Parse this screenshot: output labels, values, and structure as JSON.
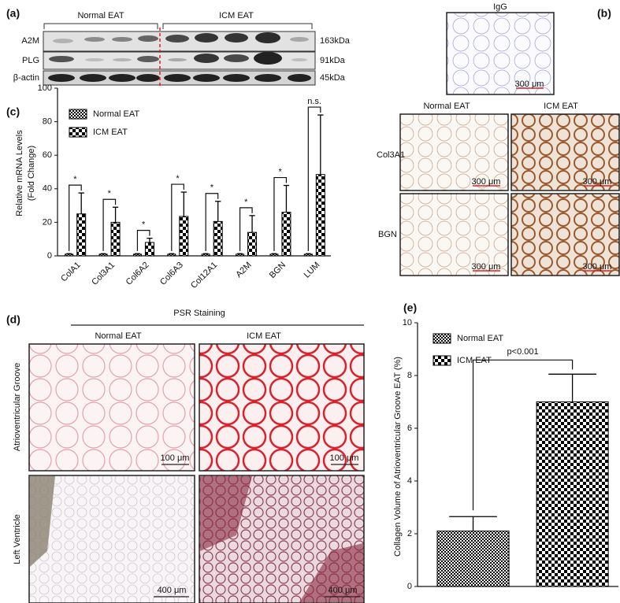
{
  "blot": {
    "label": "(a)",
    "groups": [
      "Normal EAT",
      "ICM EAT"
    ],
    "rows": [
      {
        "name": "A2M",
        "size": "163kDa"
      },
      {
        "name": "PLG",
        "size": "91kDa"
      },
      {
        "name": "β-actin",
        "size": "45kDa"
      }
    ]
  },
  "ihc": {
    "label": "(b)",
    "control": "IgG",
    "columns": [
      "Normal EAT",
      "ICM EAT"
    ],
    "rows": [
      "Col3A1",
      "BGN"
    ],
    "scale_bar": "300 μm"
  },
  "psr": {
    "label": "(d)",
    "title": "PSR Staining",
    "columns": [
      "Normal EAT",
      "ICM EAT"
    ],
    "rows": [
      "Atrioventricular Groove",
      "Left Ventricle"
    ],
    "scale_bars": [
      "100 μm",
      "400 μm"
    ]
  },
  "chart_data": [
    {
      "type": "bar",
      "label": "(c)",
      "ylabel": [
        "Relative mRNA Levels",
        "(Fold Change)"
      ],
      "categories": [
        "ColA1",
        "Col3A1",
        "Col6A2",
        "Col6A3",
        "Col12A1",
        "A2M",
        "BGN",
        "LUM"
      ],
      "series": [
        {
          "name": "Normal EAT",
          "color": "#000000",
          "pattern": "fine",
          "values": [
            1,
            1,
            1,
            1,
            1,
            1,
            1,
            1
          ],
          "errors": [
            0.3,
            0.3,
            0.3,
            0.3,
            0.3,
            0.3,
            0.3,
            0.3
          ]
        },
        {
          "name": "ICM EAT",
          "color": "#000000",
          "pattern": "coarse",
          "values": [
            25,
            20,
            8,
            23.5,
            20.5,
            14,
            26,
            48.5
          ],
          "errors": [
            12.5,
            9,
            2.5,
            14.5,
            12,
            10,
            16,
            35.5
          ]
        }
      ],
      "annotations": [
        "*",
        "*",
        "*",
        "*",
        "*",
        "*",
        "*",
        "n.s."
      ],
      "ylim": [
        0,
        100
      ],
      "yticks": [
        0,
        20,
        40,
        60,
        80,
        100
      ]
    },
    {
      "type": "bar",
      "label": "(e)",
      "ylabel": [
        "Collagen Volume of Atrioventricular Groove EAT (%)"
      ],
      "series": [
        {
          "name": "Normal EAT",
          "color": "#000000",
          "pattern": "fine",
          "values": [
            2.1
          ],
          "errors": [
            0.55
          ]
        },
        {
          "name": "ICM EAT",
          "color": "#000000",
          "pattern": "coarse",
          "values": [
            7.0
          ],
          "errors": [
            1.05
          ]
        }
      ],
      "annotations": [
        "p<0.001"
      ],
      "ylim": [
        0,
        10
      ],
      "yticks": [
        0,
        2,
        4,
        6,
        8,
        10
      ]
    }
  ]
}
